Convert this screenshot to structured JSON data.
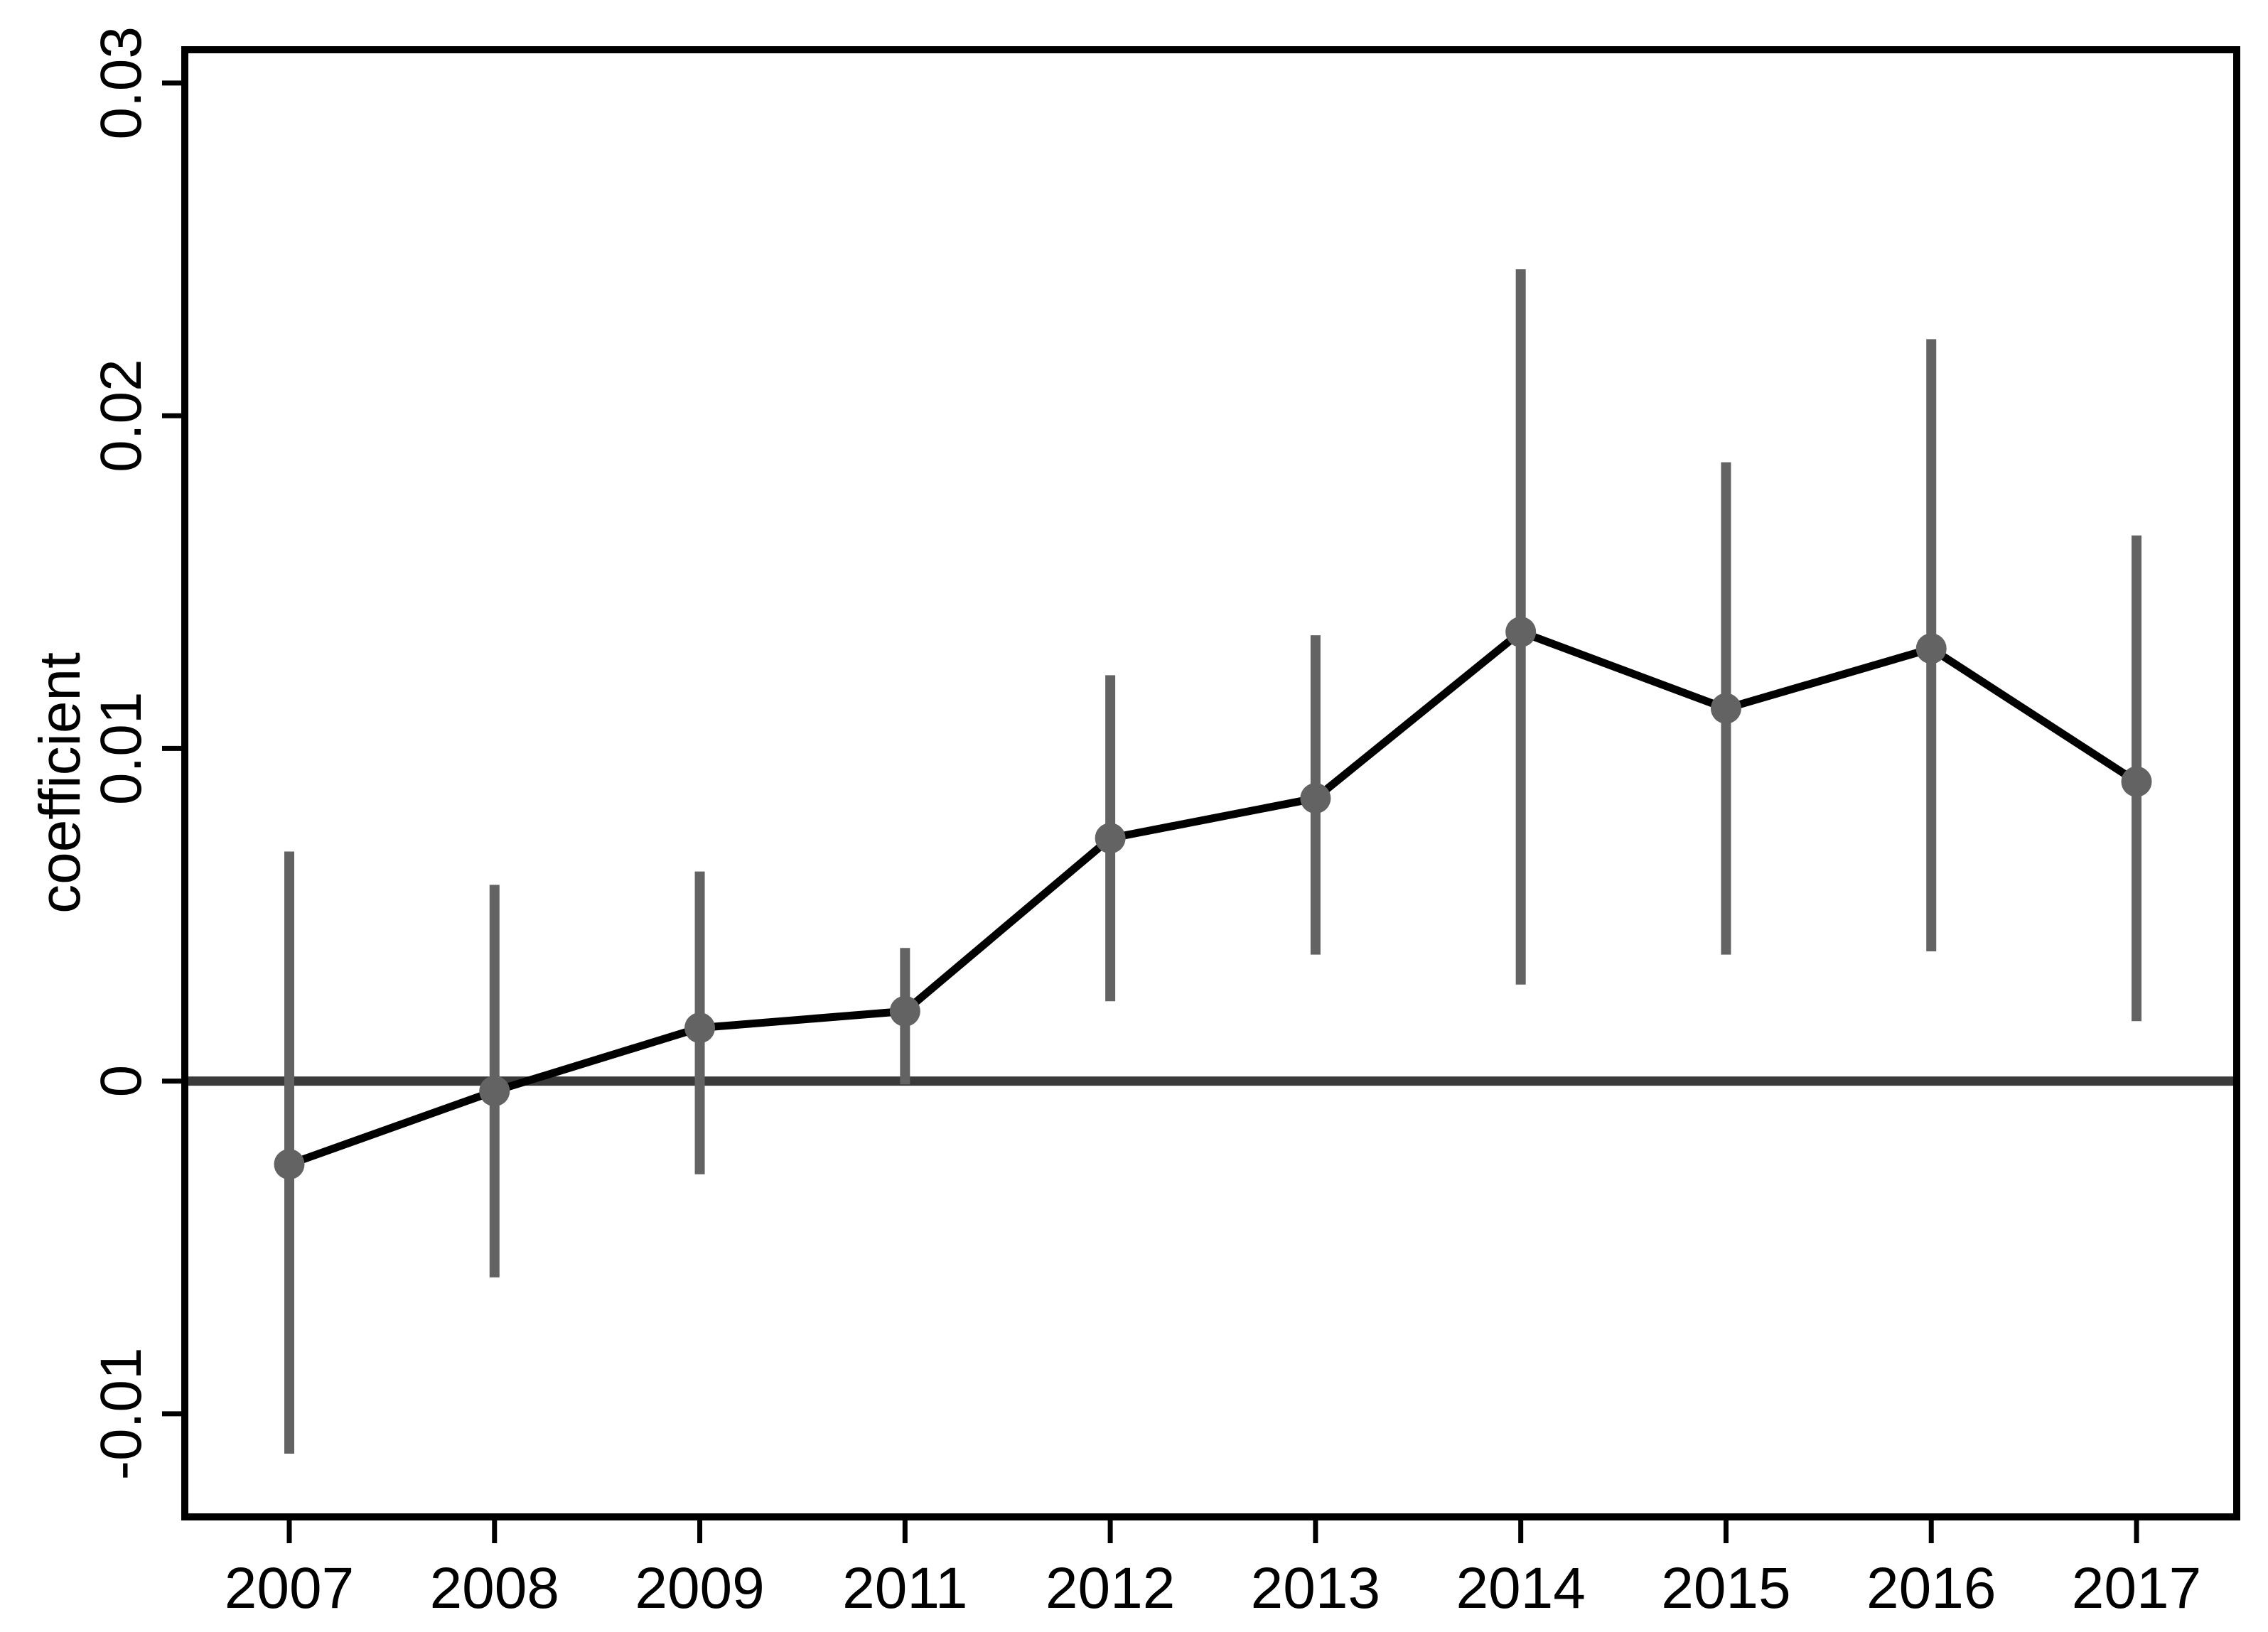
{
  "figure": {
    "background": "#ffffff",
    "ylabel": "coefficient"
  },
  "colors": {
    "frame": "#000000",
    "zero_line": "#3a3a3a",
    "ci_bar": "#636363",
    "marker": "#636363",
    "trend_line": "#000000",
    "tick_label": "#000000"
  },
  "chart_data": {
    "type": "line",
    "subtype": "coefficient-plot-with-error-bars",
    "title": "",
    "xlabel": "",
    "ylabel": "coefficient",
    "categories": [
      "2007",
      "2008",
      "2009",
      "2011",
      "2012",
      "2013",
      "2014",
      "2015",
      "2016",
      "2017"
    ],
    "series": [
      {
        "name": "coefficient",
        "values": [
          -0.0025,
          -0.0003,
          0.0016,
          0.0021,
          0.0073,
          0.0085,
          0.0135,
          0.0112,
          0.013,
          0.009
        ]
      }
    ],
    "ci_low": [
      -0.0112,
      -0.0059,
      -0.0028,
      -0.0001,
      0.0024,
      0.0038,
      0.0029,
      0.0038,
      0.0039,
      0.0018
    ],
    "ci_high": [
      0.0069,
      0.0059,
      0.0063,
      0.004,
      0.0122,
      0.0134,
      0.0244,
      0.0186,
      0.0223,
      0.0164
    ],
    "yticks": [
      -0.01,
      0,
      0.01,
      0.02,
      0.03
    ],
    "ytick_labels": [
      "-0.01",
      "0",
      "0.01",
      "0.02",
      "0.03"
    ],
    "ylim": [
      -0.0131,
      0.031
    ],
    "grid": false,
    "zero_reference_line": 0,
    "legend": "none"
  }
}
